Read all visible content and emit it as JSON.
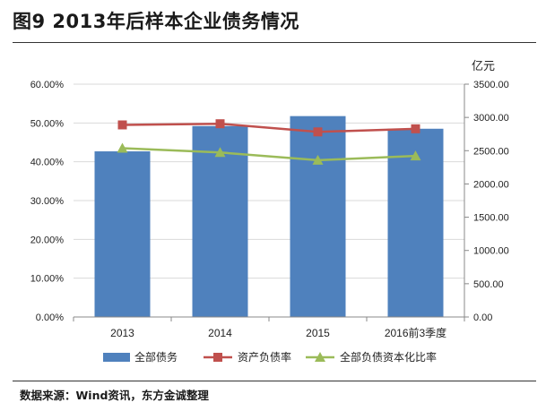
{
  "figure_title": "图9  2013年后样本企业债务情况",
  "source_note": "数据来源：Wind资讯，东方金诚整理",
  "chart_data": {
    "type": "bar",
    "categories": [
      "2013",
      "2014",
      "2015",
      "2016前3季度"
    ],
    "y_left": {
      "ticks": [
        "0.00%",
        "10.00%",
        "20.00%",
        "30.00%",
        "40.00%",
        "50.00%",
        "60.00%"
      ],
      "range": [
        0,
        60
      ]
    },
    "y_right": {
      "unit_label": "亿元",
      "ticks": [
        "0.00",
        "500.00",
        "1000.00",
        "1500.00",
        "2000.00",
        "2500.00",
        "3000.00",
        "3500.00"
      ],
      "range": [
        0,
        3500
      ]
    },
    "bars": {
      "name": "全部债务",
      "axis": "right",
      "color": "#4f81bd",
      "values": [
        2490,
        2870,
        3020,
        2830
      ]
    },
    "lines": [
      {
        "name": "资产负债率",
        "axis": "left",
        "color": "#c0504d",
        "marker": "square",
        "values": [
          49.5,
          49.8,
          47.7,
          48.5
        ]
      },
      {
        "name": "全部负债资本化比率",
        "axis": "left",
        "color": "#9bbb59",
        "marker": "triangle",
        "values": [
          43.5,
          42.4,
          40.4,
          41.5
        ]
      }
    ],
    "grid": true,
    "legend_position": "bottom"
  }
}
